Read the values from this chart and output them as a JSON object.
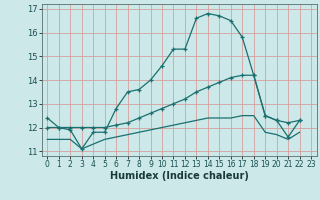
{
  "xlabel": "Humidex (Indice chaleur)",
  "xlim": [
    -0.5,
    23.5
  ],
  "ylim": [
    10.8,
    17.2
  ],
  "yticks": [
    11,
    12,
    13,
    14,
    15,
    16,
    17
  ],
  "xticks": [
    0,
    1,
    2,
    3,
    4,
    5,
    6,
    7,
    8,
    9,
    10,
    11,
    12,
    13,
    14,
    15,
    16,
    17,
    18,
    19,
    20,
    21,
    22,
    23
  ],
  "bg_color": "#cce8e8",
  "grid_color": "#d4a0a0",
  "line_color": "#1a7070",
  "line1_x": [
    0,
    1,
    2,
    3,
    4,
    5,
    6,
    7,
    8,
    9,
    10,
    11,
    12,
    13,
    14,
    15,
    16,
    17,
    18,
    19,
    20,
    21,
    22
  ],
  "line1_y": [
    12.4,
    12.0,
    11.9,
    11.1,
    11.8,
    11.8,
    12.8,
    13.5,
    13.6,
    14.0,
    14.6,
    15.3,
    15.3,
    16.6,
    16.8,
    16.7,
    16.5,
    15.8,
    14.2,
    12.5,
    12.3,
    11.6,
    12.3
  ],
  "line2_x": [
    0,
    1,
    2,
    3,
    4,
    5,
    6,
    7,
    8,
    9,
    10,
    11,
    12,
    13,
    14,
    15,
    16,
    17,
    18,
    19,
    20,
    21,
    22
  ],
  "line2_y": [
    12.0,
    12.0,
    12.0,
    12.0,
    12.0,
    12.0,
    12.1,
    12.2,
    12.4,
    12.6,
    12.8,
    13.0,
    13.2,
    13.5,
    13.7,
    13.9,
    14.1,
    14.2,
    14.2,
    12.5,
    12.3,
    12.2,
    12.3
  ],
  "line3_x": [
    0,
    1,
    2,
    3,
    4,
    5,
    6,
    7,
    8,
    9,
    10,
    11,
    12,
    13,
    14,
    15,
    16,
    17,
    18,
    19,
    20,
    21,
    22
  ],
  "line3_y": [
    11.5,
    11.5,
    11.5,
    11.1,
    11.3,
    11.5,
    11.6,
    11.7,
    11.8,
    11.9,
    12.0,
    12.1,
    12.2,
    12.3,
    12.4,
    12.4,
    12.4,
    12.5,
    12.5,
    11.8,
    11.7,
    11.5,
    11.8
  ]
}
